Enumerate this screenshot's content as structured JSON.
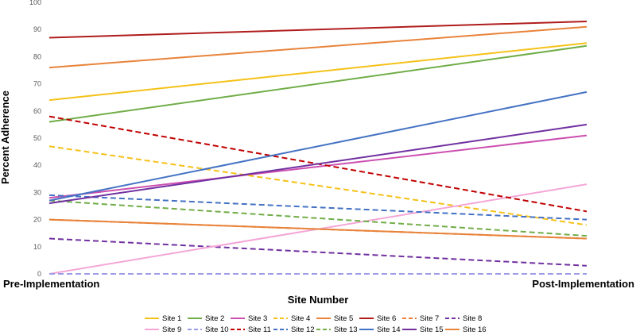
{
  "chart_data": {
    "type": "line",
    "title": "",
    "xlabel": "Site Number",
    "ylabel": "Percent Adherence",
    "categories": [
      "Pre-Implementation",
      "Post-Implementation"
    ],
    "ylim": [
      0,
      100
    ],
    "yticks": [
      0,
      10,
      20,
      30,
      40,
      50,
      60,
      70,
      80,
      90,
      100
    ],
    "grid": false,
    "legend": "bottom",
    "series": [
      {
        "name": "Site 1",
        "values": [
          64,
          85
        ],
        "color": "#F5C118",
        "dash": false
      },
      {
        "name": "Site 2",
        "values": [
          56,
          84
        ],
        "color": "#70AD47",
        "dash": false
      },
      {
        "name": "Site 3",
        "values": [
          28,
          51
        ],
        "color": "#CC4FB0",
        "dash": false
      },
      {
        "name": "Site 4",
        "values": [
          47,
          18
        ],
        "color": "#F5C118",
        "dash": true
      },
      {
        "name": "Site 5",
        "values": [
          76,
          91
        ],
        "color": "#E8833A",
        "dash": false
      },
      {
        "name": "Site 6",
        "values": [
          87,
          93
        ],
        "color": "#B01C1C",
        "dash": false
      },
      {
        "name": "Site 7",
        "values": [
          20,
          13
        ],
        "color": "#ED7D31",
        "dash": true
      },
      {
        "name": "Site 8",
        "values": [
          13,
          3
        ],
        "color": "#7030A0",
        "dash": true
      },
      {
        "name": "Site 9",
        "values": [
          0,
          33
        ],
        "color": "#F4A6D7",
        "dash": false
      },
      {
        "name": "Site 10",
        "values": [
          0,
          0
        ],
        "color": "#9C9CE6",
        "dash": true
      },
      {
        "name": "Site 11",
        "values": [
          58,
          23
        ],
        "color": "#C00000",
        "dash": true
      },
      {
        "name": "Site 12",
        "values": [
          29,
          20
        ],
        "color": "#4472C4",
        "dash": true
      },
      {
        "name": "Site 13",
        "values": [
          27,
          14
        ],
        "color": "#70AD47",
        "dash": true
      },
      {
        "name": "Site 14",
        "values": [
          27,
          67
        ],
        "color": "#4472C4",
        "dash": false
      },
      {
        "name": "Site 15",
        "values": [
          26,
          55
        ],
        "color": "#7030A0",
        "dash": false
      },
      {
        "name": "Site 16",
        "values": [
          20,
          13
        ],
        "color": "#E8833A",
        "dash": false
      }
    ]
  }
}
